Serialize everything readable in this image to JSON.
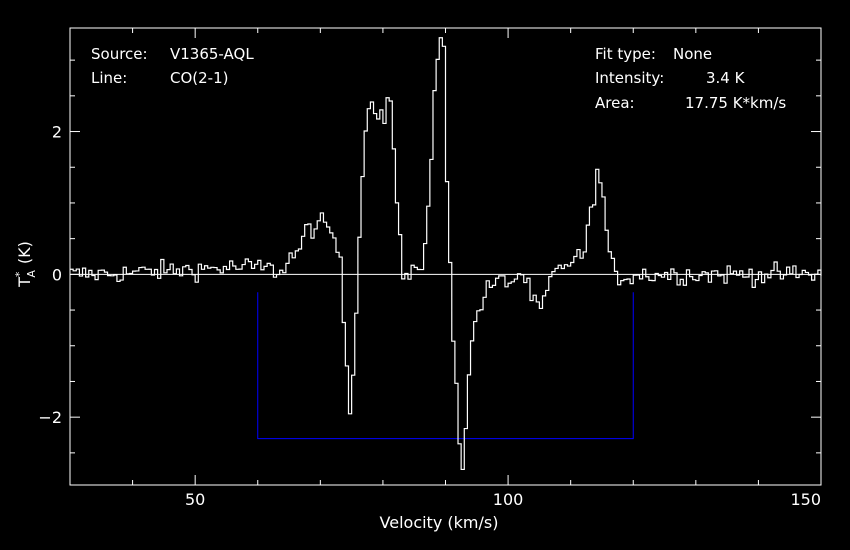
{
  "info": {
    "source_label": "Source:",
    "source_value": "V1365-AQL",
    "line_label": "Line:",
    "line_value": "CO(2-1)",
    "fit_label": "Fit type:",
    "fit_value": "None",
    "intensity_label": "Intensity:",
    "intensity_value": "3.4 K",
    "area_label": "Area:",
    "area_value": "17.75 K*km/s"
  },
  "colors": {
    "background": "#000000",
    "trace": "#ffffff",
    "window": "#0000ff"
  },
  "chart_data": {
    "type": "line",
    "title": "",
    "xlabel": "Velocity (km/s)",
    "ylabel_main": "T",
    "ylabel_sup": "*",
    "ylabel_sub": "A",
    "ylabel_unit": "(K)",
    "xlim": [
      30,
      150
    ],
    "ylim": [
      -2.95,
      3.45
    ],
    "x_ticks": [
      {
        "value": 50,
        "label": "50"
      },
      {
        "value": 100,
        "label": "100"
      },
      {
        "value": 150,
        "label": "150"
      }
    ],
    "y_ticks": [
      {
        "value": -2,
        "label": "−2"
      },
      {
        "value": 0,
        "label": "0"
      },
      {
        "value": 2,
        "label": "2"
      }
    ],
    "baseline": 0,
    "channel_width_kms": 0.5,
    "noise_rms_K": 0.07,
    "series": [
      {
        "style": "step",
        "description_points_x": [
          30,
          60,
          63,
          66,
          68,
          70,
          72,
          73,
          74,
          74.5,
          75,
          76,
          77,
          78,
          79,
          80,
          81,
          82,
          83,
          84,
          85,
          86,
          87,
          88,
          89,
          89.5,
          90,
          91,
          92,
          92.5,
          93,
          94,
          95,
          96,
          97,
          99,
          100,
          102,
          104,
          105,
          107,
          110,
          112,
          113,
          114,
          115,
          116,
          117,
          118,
          120,
          150
        ],
        "y": [
          0,
          0.1,
          0.05,
          0.3,
          0.65,
          0.7,
          0.55,
          0.1,
          -1.3,
          -1.85,
          -1.4,
          0.6,
          2.1,
          2.45,
          2.3,
          2.2,
          2.5,
          1.0,
          0,
          -0.1,
          0.05,
          0.15,
          0.9,
          2.5,
          3.35,
          3.2,
          1.2,
          -0.8,
          -2.3,
          -2.65,
          -2.1,
          -0.9,
          -0.5,
          -0.3,
          -0.15,
          -0.1,
          -0.1,
          0,
          -0.4,
          -0.5,
          0,
          0.2,
          0.3,
          0.85,
          1.45,
          1.05,
          0.2,
          0,
          -0.05,
          0,
          0
        ]
      },
      {
        "style": "baseline-window",
        "x": [
          60,
          60,
          120,
          120
        ],
        "y": [
          -0.25,
          -2.3,
          -2.3,
          -0.25
        ]
      }
    ]
  }
}
